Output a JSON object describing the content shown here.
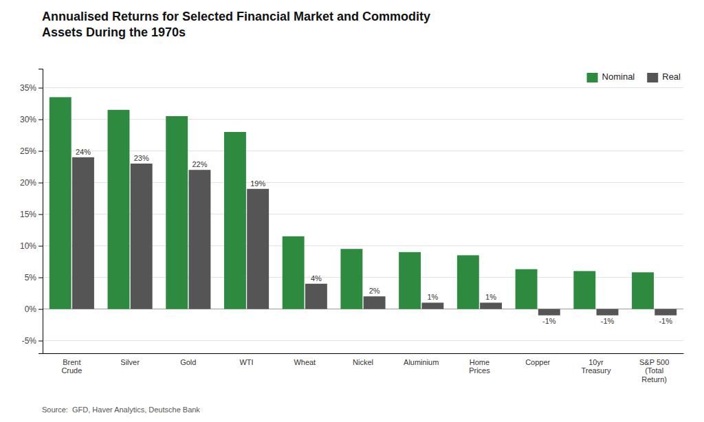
{
  "chart_data": {
    "type": "bar",
    "title": "Annualised Returns for Selected Financial Market and Commodity\nAssets During the 1970s",
    "categories": [
      "Brent\nCrude",
      "Silver",
      "Gold",
      "WTI",
      "Wheat",
      "Nickel",
      "Aluminium",
      "Home\nPrices",
      "Copper",
      "10yr\nTreasury",
      "S&P 500\n(Total\nReturn)"
    ],
    "series": [
      {
        "name": "Nominal",
        "color": "#2d8a3e",
        "values": [
          33.5,
          31.5,
          30.5,
          28.0,
          11.5,
          9.5,
          9.0,
          8.5,
          6.3,
          6.0,
          5.8
        ]
      },
      {
        "name": "Real",
        "color": "#555555",
        "values": [
          24,
          23,
          22,
          19,
          4,
          2,
          1,
          1,
          -1,
          -1,
          -1
        ],
        "value_labels": [
          "24%",
          "23%",
          "22%",
          "19%",
          "4%",
          "2%",
          "1%",
          "1%",
          "-1%",
          "-1%",
          "-1%"
        ]
      }
    ],
    "ylim": [
      -7,
      38
    ],
    "yticks": [
      {
        "value": -5,
        "label": "-5%"
      },
      {
        "value": 0,
        "label": "0%"
      },
      {
        "value": 5,
        "label": "5%"
      },
      {
        "value": 10,
        "label": "10%"
      },
      {
        "value": 15,
        "label": "15%"
      },
      {
        "value": 20,
        "label": "20%"
      },
      {
        "value": 25,
        "label": "25%"
      },
      {
        "value": 30,
        "label": "30%"
      },
      {
        "value": 35,
        "label": "35%"
      }
    ],
    "grid": true,
    "legend": "upper right",
    "data_labels": true,
    "source": "Source:  GFD, Haver Analytics, Deutsche Bank"
  }
}
